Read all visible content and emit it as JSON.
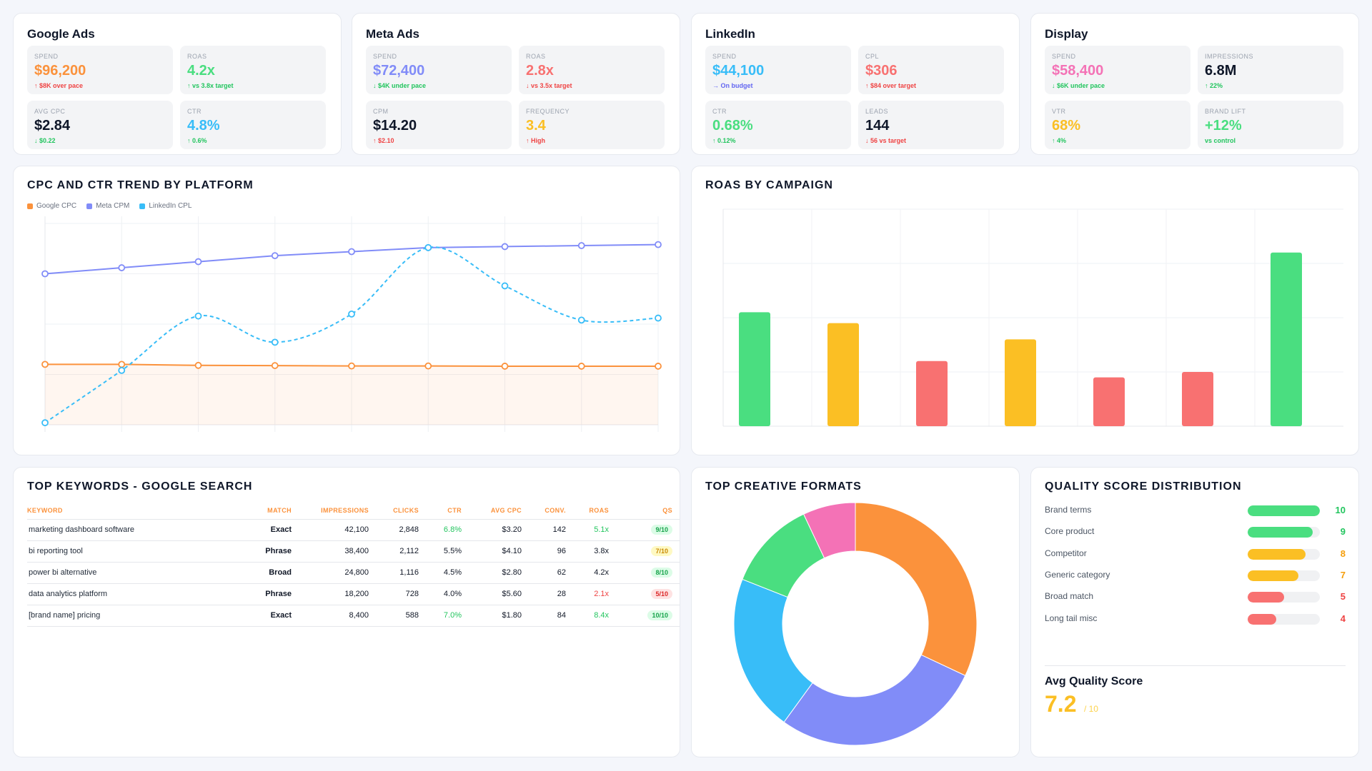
{
  "platforms": [
    {
      "name": "Google Ads",
      "kpis": [
        {
          "label": "SPEND",
          "value": "$96,200",
          "value_color": "#fb923c",
          "note": "↑ $8K over pace",
          "note_color": "#ef4444"
        },
        {
          "label": "ROAS",
          "value": "4.2x",
          "value_color": "#4ade80",
          "note": "↑ vs 3.8x target",
          "note_color": "#22c55e"
        },
        {
          "label": "AVG CPC",
          "value": "$2.84",
          "value_color": "#0f1729",
          "note": "↓ $0.22",
          "note_color": "#22c55e"
        },
        {
          "label": "CTR",
          "value": "4.8%",
          "value_color": "#38bdf8",
          "note": "↑ 0.6%",
          "note_color": "#22c55e"
        }
      ]
    },
    {
      "name": "Meta Ads",
      "kpis": [
        {
          "label": "SPEND",
          "value": "$72,400",
          "value_color": "#818cf8",
          "note": "↓ $4K under pace",
          "note_color": "#22c55e"
        },
        {
          "label": "ROAS",
          "value": "2.8x",
          "value_color": "#f87171",
          "note": "↓ vs 3.5x target",
          "note_color": "#ef4444"
        },
        {
          "label": "CPM",
          "value": "$14.20",
          "value_color": "#0f1729",
          "note": "↑ $2.10",
          "note_color": "#ef4444"
        },
        {
          "label": "FREQUENCY",
          "value": "3.4",
          "value_color": "#fbbf24",
          "note": "↑ High",
          "note_color": "#ef4444"
        }
      ]
    },
    {
      "name": "LinkedIn",
      "kpis": [
        {
          "label": "SPEND",
          "value": "$44,100",
          "value_color": "#38bdf8",
          "note": "→ On budget",
          "note_color": "#6366f1"
        },
        {
          "label": "CPL",
          "value": "$306",
          "value_color": "#f87171",
          "note": "↑ $84 over target",
          "note_color": "#ef4444"
        },
        {
          "label": "CTR",
          "value": "0.68%",
          "value_color": "#4ade80",
          "note": "↑ 0.12%",
          "note_color": "#22c55e"
        },
        {
          "label": "LEADS",
          "value": "144",
          "value_color": "#0f1729",
          "note": "↓ 56 vs target",
          "note_color": "#ef4444"
        }
      ]
    },
    {
      "name": "Display",
      "kpis": [
        {
          "label": "SPEND",
          "value": "$58,400",
          "value_color": "#f472b6",
          "note": "↓ $6K under pace",
          "note_color": "#22c55e"
        },
        {
          "label": "IMPRESSIONS",
          "value": "6.8M",
          "value_color": "#0f1729",
          "note": "↑ 22%",
          "note_color": "#22c55e"
        },
        {
          "label": "VTR",
          "value": "68%",
          "value_color": "#fbbf24",
          "note": "↑ 4%",
          "note_color": "#22c55e"
        },
        {
          "label": "BRAND LIFT",
          "value": "+12%",
          "value_color": "#4ade80",
          "note": "vs control",
          "note_color": "#22c55e"
        }
      ]
    }
  ],
  "trend": {
    "title": "CPC AND CTR TREND BY PLATFORM",
    "legend": [
      {
        "name": "Google CPC",
        "color": "#fb923c"
      },
      {
        "name": "Meta CPM",
        "color": "#818cf8"
      },
      {
        "name": "LinkedIn CPL",
        "color": "#38bdf8"
      }
    ]
  },
  "roas": {
    "title": "ROAS BY CAMPAIGN"
  },
  "keywords": {
    "title": "TOP KEYWORDS - GOOGLE SEARCH",
    "headers": [
      "KEYWORD",
      "MATCH",
      "IMPRESSIONS",
      "CLICKS",
      "CTR",
      "AVG CPC",
      "CONV.",
      "ROAS",
      "QS"
    ],
    "rows": [
      {
        "keyword": "marketing dashboard software",
        "match": "Exact",
        "impressions": "42,100",
        "clicks": "2,848",
        "ctr": "6.8%",
        "ctr_color": "#22c55e",
        "cpc": "$3.20",
        "conv": "142",
        "roas": "5.1x",
        "roas_color": "#22c55e",
        "qs": "9/10",
        "qs_bg": "#dcfce7",
        "qs_color": "#16a34a"
      },
      {
        "keyword": "bi reporting tool",
        "match": "Phrase",
        "impressions": "38,400",
        "clicks": "2,112",
        "ctr": "5.5%",
        "ctr_color": "#111827",
        "cpc": "$4.10",
        "conv": "96",
        "roas": "3.8x",
        "roas_color": "#111827",
        "qs": "7/10",
        "qs_bg": "#fef9c3",
        "qs_color": "#ca8a04"
      },
      {
        "keyword": "power bi alternative",
        "match": "Broad",
        "impressions": "24,800",
        "clicks": "1,116",
        "ctr": "4.5%",
        "ctr_color": "#111827",
        "cpc": "$2.80",
        "conv": "62",
        "roas": "4.2x",
        "roas_color": "#111827",
        "qs": "8/10",
        "qs_bg": "#dcfce7",
        "qs_color": "#16a34a"
      },
      {
        "keyword": "data analytics platform",
        "match": "Phrase",
        "impressions": "18,200",
        "clicks": "728",
        "ctr": "4.0%",
        "ctr_color": "#111827",
        "cpc": "$5.60",
        "conv": "28",
        "roas": "2.1x",
        "roas_color": "#ef4444",
        "qs": "5/10",
        "qs_bg": "#fee2e2",
        "qs_color": "#dc2626"
      },
      {
        "keyword": "[brand name] pricing",
        "match": "Exact",
        "impressions": "8,400",
        "clicks": "588",
        "ctr": "7.0%",
        "ctr_color": "#22c55e",
        "cpc": "$1.80",
        "conv": "84",
        "roas": "8.4x",
        "roas_color": "#22c55e",
        "qs": "10/10",
        "qs_bg": "#dcfce7",
        "qs_color": "#16a34a"
      }
    ]
  },
  "creative": {
    "title": "TOP CREATIVE FORMATS"
  },
  "quality": {
    "title": "QUALITY SCORE DISTRIBUTION",
    "rows": [
      {
        "label": "Brand terms",
        "value": 10,
        "display": "10",
        "color": "#4ade80"
      },
      {
        "label": "Core product",
        "value": 9,
        "display": "9",
        "color": "#4ade80"
      },
      {
        "label": "Competitor",
        "value": 8,
        "display": "8",
        "color": "#fbbf24"
      },
      {
        "label": "Generic category",
        "value": 7,
        "display": "7",
        "color": "#fbbf24"
      },
      {
        "label": "Broad match",
        "value": 5,
        "display": "5",
        "color": "#f87171"
      },
      {
        "label": "Long tail misc",
        "value": 4,
        "display": "4",
        "color": "#f87171"
      }
    ],
    "avg_label": "Avg Quality Score",
    "avg_value": "7.2",
    "avg_suffix": "/ 10"
  },
  "chart_data": [
    {
      "type": "line",
      "title": "CPC AND CTR TREND BY PLATFORM",
      "x": [
        1,
        2,
        3,
        4,
        5,
        6,
        7,
        8,
        9
      ],
      "ylim": [
        0,
        10
      ],
      "grid": true,
      "legend_position": "top-left",
      "series": [
        {
          "name": "Google CPC",
          "color": "#fb923c",
          "values": [
            3.0,
            3.0,
            2.95,
            2.94,
            2.92,
            2.92,
            2.91,
            2.91,
            2.91
          ],
          "area": true
        },
        {
          "name": "Meta CPM",
          "color": "#818cf8",
          "values": [
            7.5,
            7.8,
            8.1,
            8.4,
            8.6,
            8.8,
            8.85,
            8.9,
            8.95
          ]
        },
        {
          "name": "LinkedIn CPL",
          "color": "#38bdf8",
          "values": [
            0.1,
            2.7,
            5.4,
            4.1,
            5.5,
            8.8,
            6.9,
            5.2,
            5.3
          ],
          "dashed": true
        }
      ]
    },
    {
      "type": "bar",
      "title": "ROAS BY CAMPAIGN",
      "categories": [
        "",
        "",
        "",
        "",
        "",
        "",
        ""
      ],
      "values": [
        4.2,
        3.8,
        2.4,
        3.2,
        1.8,
        2.0,
        6.4
      ],
      "colors": [
        "#4ade80",
        "#fbbf24",
        "#f87171",
        "#fbbf24",
        "#f87171",
        "#f87171",
        "#4ade80"
      ],
      "ylim": [
        0,
        8
      ],
      "grid": true
    },
    {
      "type": "pie",
      "title": "TOP CREATIVE FORMATS",
      "donut": true,
      "values": [
        32,
        28,
        21,
        12,
        7
      ],
      "colors": [
        "#fb923c",
        "#818cf8",
        "#38bdf8",
        "#4ade80",
        "#f472b6"
      ]
    }
  ]
}
